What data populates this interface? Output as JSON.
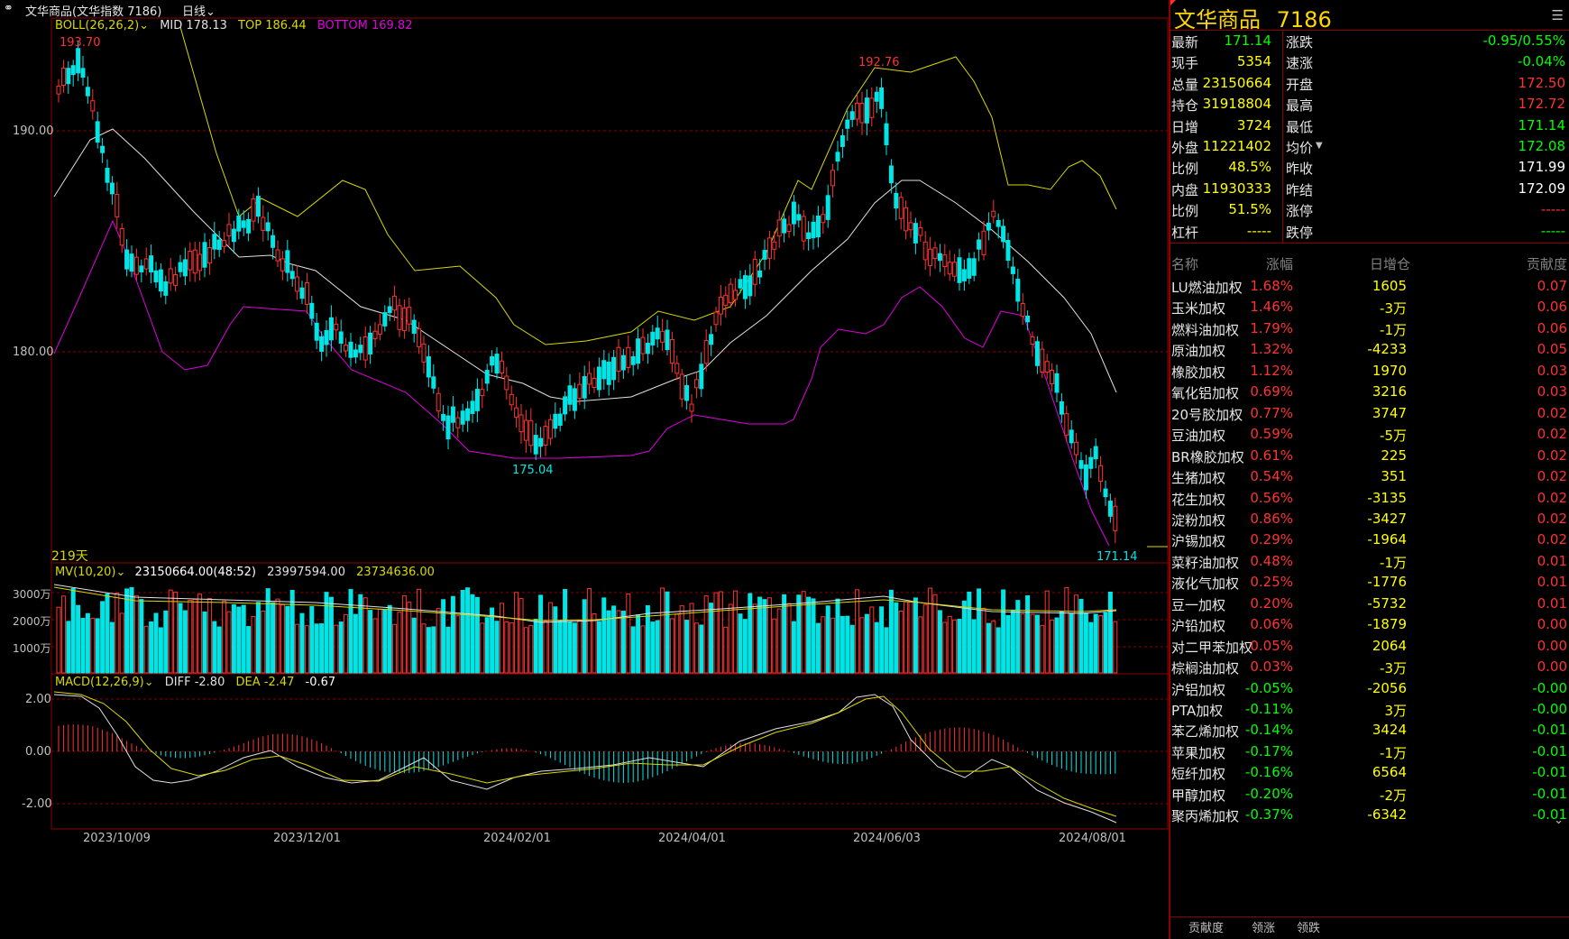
{
  "window": {
    "title": "文华商品(文华指数 7186)",
    "period": "日线",
    "period_chevron": "chevron-down-icon"
  },
  "indicators": {
    "boll": {
      "label": "BOLL(26,26,2)",
      "mid": "MID 178.13",
      "top": "TOP 186.44",
      "bottom": "BOTTOM 169.82"
    },
    "mv": {
      "label": "MV(10,20)",
      "v1": "23150664.00(48:52)",
      "v2": "23997594.00",
      "v3": "23734636.00"
    },
    "macd": {
      "label": "MACD(12,26,9)",
      "diff": "DIFF -2.80",
      "dea": "DEA -2.47",
      "macd": "-0.67"
    }
  },
  "price_axis": [
    "190.00",
    "180.00"
  ],
  "volume_axis": [
    "3000万",
    "2000万",
    "1000万"
  ],
  "macd_axis": [
    "2.00",
    "0.00",
    "-2.00"
  ],
  "date_axis": [
    "2023/10/09",
    "2023/12/01",
    "2024/02/01",
    "2024/04/01",
    "2024/06/03",
    "2024/08/01"
  ],
  "annotations": {
    "high1": "193.70",
    "high2": "192.76",
    "low1": "175.04",
    "last": "171.14",
    "days": "219天"
  },
  "colors": {
    "up": "#ff3232",
    "down": "#00e5e5",
    "mid": "#e0e0e0",
    "top": "#d8d800",
    "bottom": "#e000e0",
    "grid": "#8b0000"
  },
  "quote": {
    "name": "文华商品",
    "code": "7186",
    "rows": [
      {
        "l1": "最新",
        "v1": "171.14",
        "c1": "#00ff00",
        "l2": "涨跌",
        "v2": "-0.95/0.55%",
        "c2": "#00ff00"
      },
      {
        "l1": "现手",
        "v1": "5354",
        "c1": "#ffff00",
        "l2": "速涨",
        "v2": "-0.04%",
        "c2": "#00ff00"
      },
      {
        "l1": "总量",
        "v1": "23150664",
        "c1": "#ffff00",
        "l2": "开盘",
        "v2": "172.50",
        "c2": "#ff3232"
      },
      {
        "l1": "持仓",
        "v1": "31918804",
        "c1": "#ffff00",
        "l2": "最高",
        "v2": "172.72",
        "c2": "#ff3232"
      },
      {
        "l1": "日增",
        "v1": "3724",
        "c1": "#ffff00",
        "l2": "最低",
        "v2": "171.14",
        "c2": "#00ff00"
      },
      {
        "l1": "外盘",
        "v1": "11221402",
        "c1": "#ffff00",
        "l2": "均价",
        "v2": "172.08",
        "c2": "#00ff00"
      },
      {
        "l1": "比例",
        "v1": "48.5%",
        "c1": "#ffff00",
        "l2": "昨收",
        "v2": "171.99",
        "c2": "#ffffff"
      },
      {
        "l1": "内盘",
        "v1": "11930333",
        "c1": "#ffff00",
        "l2": "昨结",
        "v2": "172.09",
        "c2": "#ffffff"
      },
      {
        "l1": "比例",
        "v1": "51.5%",
        "c1": "#ffff00",
        "l2": "涨停",
        "v2": "-----",
        "c2": "#ff3232"
      },
      {
        "l1": "杠杆",
        "v1": "-----",
        "c1": "#ffff00",
        "l2": "跌停",
        "v2": "-----",
        "c2": "#00ff00"
      }
    ]
  },
  "contrib": {
    "headers": [
      "名称",
      "涨幅",
      "日增仓",
      "贡献度"
    ],
    "rows": [
      {
        "name": "LU燃油加权",
        "chg": "1.68%",
        "oi": "1605",
        "con": "0.07"
      },
      {
        "name": "玉米加权",
        "chg": "1.46%",
        "oi": "-3万",
        "con": "0.06"
      },
      {
        "name": "燃料油加权",
        "chg": "1.79%",
        "oi": "-1万",
        "con": "0.06"
      },
      {
        "name": "原油加权",
        "chg": "1.32%",
        "oi": "-4233",
        "con": "0.05"
      },
      {
        "name": "橡胶加权",
        "chg": "1.12%",
        "oi": "1970",
        "con": "0.03"
      },
      {
        "name": "氧化铝加权",
        "chg": "0.69%",
        "oi": "3216",
        "con": "0.03"
      },
      {
        "name": "20号胶加权",
        "chg": "0.77%",
        "oi": "3747",
        "con": "0.02"
      },
      {
        "name": "豆油加权",
        "chg": "0.59%",
        "oi": "-5万",
        "con": "0.02"
      },
      {
        "name": "BR橡胶加权",
        "chg": "0.61%",
        "oi": "225",
        "con": "0.02"
      },
      {
        "name": "生猪加权",
        "chg": "0.54%",
        "oi": "351",
        "con": "0.02"
      },
      {
        "name": "花生加权",
        "chg": "0.56%",
        "oi": "-3135",
        "con": "0.02"
      },
      {
        "name": "淀粉加权",
        "chg": "0.86%",
        "oi": "-3427",
        "con": "0.02"
      },
      {
        "name": "沪锡加权",
        "chg": "0.29%",
        "oi": "-1964",
        "con": "0.02"
      },
      {
        "name": "菜籽油加权",
        "chg": "0.48%",
        "oi": "-1万",
        "con": "0.01"
      },
      {
        "name": "液化气加权",
        "chg": "0.25%",
        "oi": "-1776",
        "con": "0.01"
      },
      {
        "name": "豆一加权",
        "chg": "0.20%",
        "oi": "-5732",
        "con": "0.01"
      },
      {
        "name": "沪铅加权",
        "chg": "0.06%",
        "oi": "-1879",
        "con": "0.00"
      },
      {
        "name": "对二甲苯加权",
        "chg": "0.05%",
        "oi": "2064",
        "con": "0.00"
      },
      {
        "name": "棕榈油加权",
        "chg": "0.03%",
        "oi": "-3万",
        "con": "0.00"
      },
      {
        "name": "沪铝加权",
        "chg": "-0.05%",
        "oi": "-2056",
        "con": "-0.00"
      },
      {
        "name": "PTA加权",
        "chg": "-0.11%",
        "oi": "3万",
        "con": "-0.00"
      },
      {
        "name": "苯乙烯加权",
        "chg": "-0.14%",
        "oi": "3424",
        "con": "-0.01"
      },
      {
        "name": "苹果加权",
        "chg": "-0.17%",
        "oi": "-1万",
        "con": "-0.01"
      },
      {
        "name": "短纤加权",
        "chg": "-0.16%",
        "oi": "6564",
        "con": "-0.01"
      },
      {
        "name": "甲醇加权",
        "chg": "-0.20%",
        "oi": "-2万",
        "con": "-0.01"
      },
      {
        "name": "聚丙烯加权",
        "chg": "-0.37%",
        "oi": "-6342",
        "con": "-0.01"
      }
    ]
  },
  "tabs": [
    "贡献度",
    "领涨",
    "领跌"
  ]
}
